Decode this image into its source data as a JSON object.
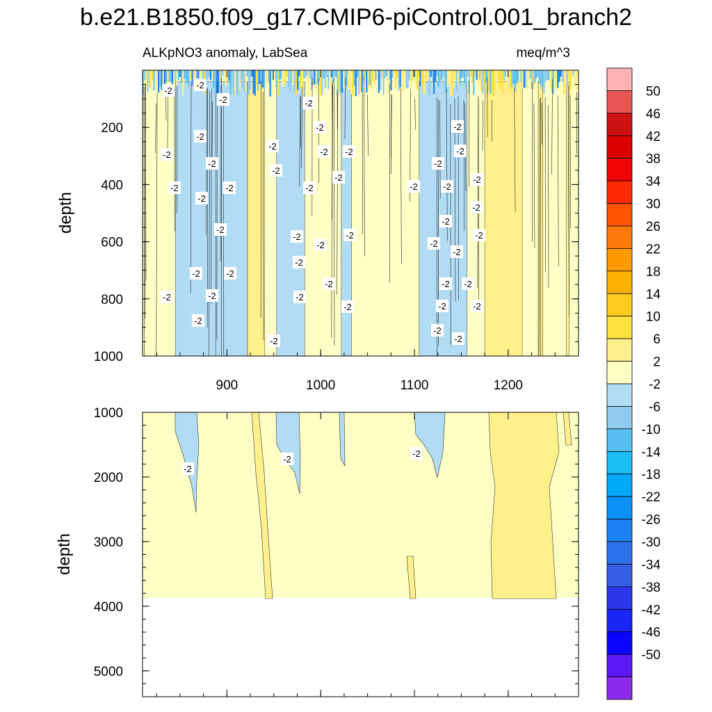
{
  "chart_data": {
    "type": "heatmap",
    "title": "b.e21.B1850.f09_g17.CMIP6-piControl.001_branch2",
    "subtitle_left": "ALKpNO3 anomaly, LabSea",
    "subtitle_right": "meq/m^3",
    "xlim": [
      810,
      1275
    ],
    "x_ticks": [
      "900",
      "1000",
      "1100",
      "1200"
    ],
    "x_tick_values": [
      900,
      1000,
      1100,
      1200
    ],
    "panels": [
      {
        "name": "upper",
        "ylabel": "depth",
        "ylim": [
          0,
          1000
        ],
        "y_ticks": [
          "200",
          "400",
          "600",
          "800",
          "1000"
        ],
        "y_tick_values": [
          200,
          400,
          600,
          800,
          1000
        ],
        "negative_bands": [
          [
            845,
            888
          ],
          [
            888,
            922
          ],
          [
            953,
            983
          ],
          [
            1022,
            1033
          ],
          [
            1105,
            1156
          ]
        ],
        "positive_bands": [
          [
            922,
            940
          ],
          [
            1175,
            1215
          ],
          [
            1232,
            1237
          ],
          [
            1262,
            1265
          ]
        ],
        "deep_top_band": [
          810,
          1275
        ]
      },
      {
        "name": "lower",
        "ylabel": "depth",
        "ylim": [
          1000,
          5400
        ],
        "y_ticks": [
          "1000",
          "2000",
          "3000",
          "4000",
          "5000"
        ],
        "y_tick_values": [
          1000,
          2000,
          3000,
          4000,
          5000
        ],
        "ocean_floor": 3870
      }
    ],
    "contour_labels": [
      "-2",
      "-2",
      "-2"
    ],
    "colorbar": {
      "labels": [
        "50",
        "46",
        "42",
        "38",
        "34",
        "30",
        "26",
        "22",
        "18",
        "14",
        "10",
        "6",
        "2",
        "-2",
        "-6",
        "-10",
        "-14",
        "-18",
        "-22",
        "-26",
        "-30",
        "-34",
        "-38",
        "-42",
        "-46",
        "-50"
      ],
      "colors": [
        "#feb2b2",
        "#e85656",
        "#cc1212",
        "#dc0000",
        "#f00404",
        "#ff2c04",
        "#ff5404",
        "#ff780c",
        "#ff9a04",
        "#ffb005",
        "#ffca1e",
        "#fde13f",
        "#fff08c",
        "#feffc4",
        "#b2dcf4",
        "#90cbed",
        "#59c1f1",
        "#1cbdf4",
        "#03a8f8",
        "#0b92f7",
        "#1a82f2",
        "#2d72ec",
        "#375ee4",
        "#2a38ea",
        "#1a24f5",
        "#0a06fb",
        "#5b1af5",
        "#8b2ae8"
      ]
    }
  }
}
